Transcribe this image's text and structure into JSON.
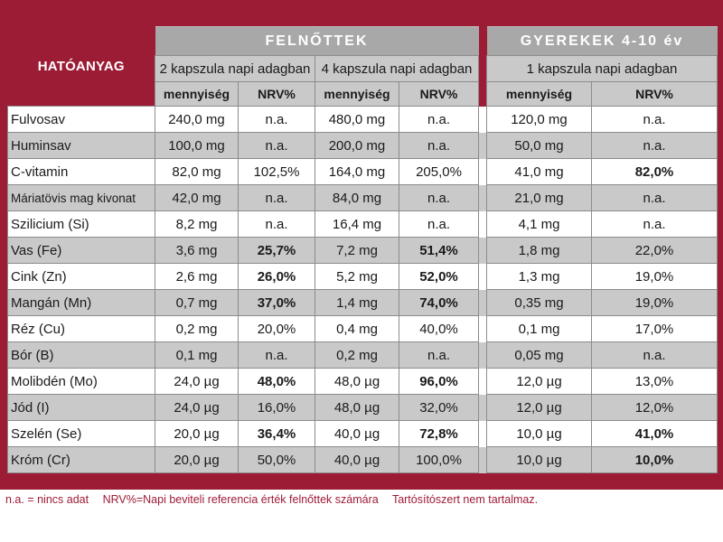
{
  "header": {
    "ingredient_label": "HATÓANYAG",
    "adults_label": "FELNŐTTEK",
    "children_label": "GYEREKEK 4-10 év",
    "dose_2caps": "2 kapszula napi adagban",
    "dose_4caps": "4 kapszula napi adagban",
    "dose_1caps": "1 kapszula napi adagban",
    "qty_label": "mennyiség",
    "nrv_label": "NRV%"
  },
  "rows": [
    {
      "name": "Fulvosav",
      "a2_qty": "240,0 mg",
      "a2_nrv": "n.a.",
      "a4_qty": "480,0 mg",
      "a4_nrv": "n.a.",
      "c1_qty": "120,0 mg",
      "c1_nrv": "n.a."
    },
    {
      "name": "Huminsav",
      "a2_qty": "100,0 mg",
      "a2_nrv": "n.a.",
      "a4_qty": "200,0 mg",
      "a4_nrv": "n.a.",
      "c1_qty": "50,0 mg",
      "c1_nrv": "n.a."
    },
    {
      "name": "C-vitamin",
      "a2_qty": "82,0 mg",
      "a2_nrv": "102,5%",
      "a4_qty": "164,0 mg",
      "a4_nrv": "205,0%",
      "c1_qty": "41,0 mg",
      "c1_nrv": "82,0%"
    },
    {
      "name": "Máriatövis mag kivonat",
      "a2_qty": "42,0 mg",
      "a2_nrv": "n.a.",
      "a4_qty": "84,0 mg",
      "a4_nrv": "n.a.",
      "c1_qty": "21,0 mg",
      "c1_nrv": "n.a."
    },
    {
      "name": "Szilicium (Si)",
      "a2_qty": "8,2 mg",
      "a2_nrv": "n.a.",
      "a4_qty": "16,4 mg",
      "a4_nrv": "n.a.",
      "c1_qty": "4,1 mg",
      "c1_nrv": "n.a."
    },
    {
      "name": "Vas (Fe)",
      "a2_qty": "3,6 mg",
      "a2_nrv": "25,7%",
      "a4_qty": "7,2 mg",
      "a4_nrv": "51,4%",
      "c1_qty": "1,8 mg",
      "c1_nrv": "22,0%"
    },
    {
      "name": "Cink (Zn)",
      "a2_qty": "2,6 mg",
      "a2_nrv": "26,0%",
      "a4_qty": "5,2 mg",
      "a4_nrv": "52,0%",
      "c1_qty": "1,3 mg",
      "c1_nrv": "19,0%"
    },
    {
      "name": "Mangán (Mn)",
      "a2_qty": "0,7 mg",
      "a2_nrv": "37,0%",
      "a4_qty": "1,4 mg",
      "a4_nrv": "74,0%",
      "c1_qty": "0,35 mg",
      "c1_nrv": "19,0%"
    },
    {
      "name": "Réz (Cu)",
      "a2_qty": "0,2 mg",
      "a2_nrv": "20,0%",
      "a4_qty": "0,4 mg",
      "a4_nrv": "40,0%",
      "c1_qty": "0,1 mg",
      "c1_nrv": "17,0%"
    },
    {
      "name": "Bór (B)",
      "a2_qty": "0,1 mg",
      "a2_nrv": "n.a.",
      "a4_qty": "0,2 mg",
      "a4_nrv": "n.a.",
      "c1_qty": "0,05 mg",
      "c1_nrv": "n.a."
    },
    {
      "name": "Molibdén (Mo)",
      "a2_qty": "24,0 µg",
      "a2_nrv": "48,0%",
      "a4_qty": "48,0 µg",
      "a4_nrv": "96,0%",
      "c1_qty": "12,0 µg",
      "c1_nrv": "13,0%"
    },
    {
      "name": "Jód (I)",
      "a2_qty": "24,0 µg",
      "a2_nrv": "16,0%",
      "a4_qty": "48,0 µg",
      "a4_nrv": "32,0%",
      "c1_qty": "12,0 µg",
      "c1_nrv": "12,0%"
    },
    {
      "name": "Szelén (Se)",
      "a2_qty": "20,0 µg",
      "a2_nrv": "36,4%",
      "a4_qty": "40,0 µg",
      "a4_nrv": "72,8%",
      "c1_qty": "10,0 µg",
      "c1_nrv": "41,0%"
    },
    {
      "name": "Króm (Cr)",
      "a2_qty": "20,0 µg",
      "a2_nrv": "50,0%",
      "a4_qty": "40,0 µg",
      "a4_nrv": "100,0%",
      "c1_qty": "10,0 µg",
      "c1_nrv": "10,0%"
    }
  ],
  "footer": {
    "na_note": "n.a. = nincs adat",
    "nrv_note": "NRV%=Napi beviteli referencia érték felnőttek számára",
    "preservative_note": "Tartósítószert nem tartalmaz."
  },
  "colors": {
    "brand": "#9c1c36",
    "header_gray": "#a8a8a8",
    "row_gray": "#c9c9c9"
  }
}
